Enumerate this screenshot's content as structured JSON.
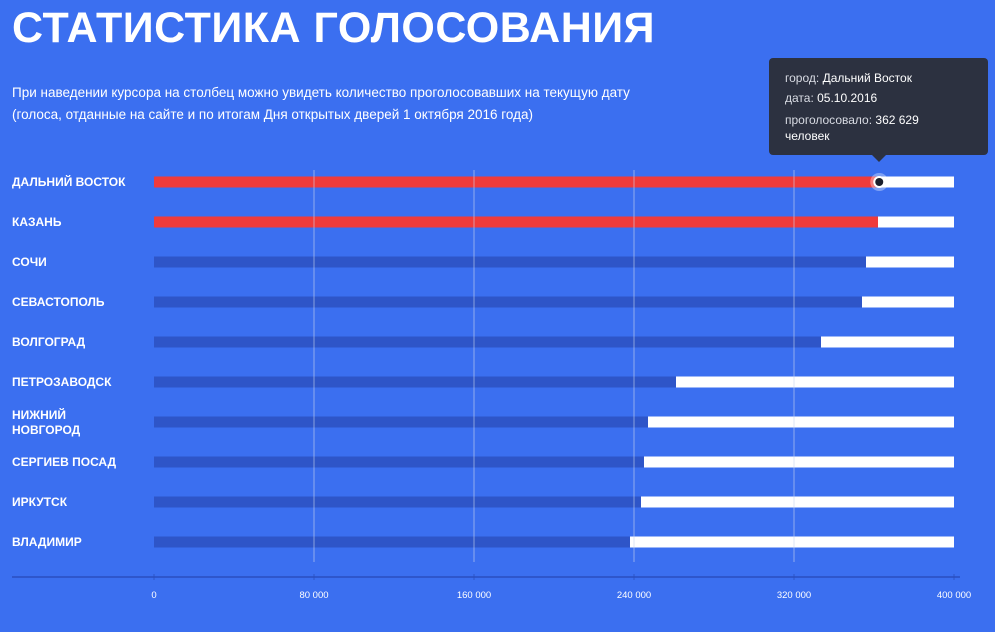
{
  "title": "СТАТИСТИКА ГОЛОСОВАНИЯ",
  "subtitle": {
    "line1": "При наведении курсора на столбец можно увидеть количество проголосовавших на текущую дату",
    "line2": "(голоса, отданные на сайте и по итогам Дня открытых дверей 1 октября 2016 года)"
  },
  "tooltip": {
    "city_key": "город:",
    "city_value": "Дальний Восток",
    "date_key": "дата:",
    "date_value": "05.10.2016",
    "votes_key": "проголосовало:",
    "votes_value": "362 629",
    "votes_unit": "человек"
  },
  "colors": {
    "background": "#3b6ff0",
    "bar_default": "#2e55c8",
    "bar_highlight": "#ef3b3b",
    "bar_remainder": "#ffffff",
    "tooltip_bg": "#2c3140"
  },
  "chart_data": {
    "type": "bar",
    "orientation": "horizontal",
    "categories": [
      "ДАЛЬНИЙ ВОСТОК",
      "КАЗАНЬ",
      "СОЧИ",
      "СЕВАСТОПОЛЬ",
      "ВОЛГОГРАД",
      "ПЕТРОЗАВОДСК",
      "НИЖНИЙ НОВГОРОД",
      "СЕРГИЕВ ПОСАД",
      "ИРКУТСК",
      "ВЛАДИМИР"
    ],
    "values": [
      362629,
      362000,
      356000,
      354000,
      333500,
      261000,
      247000,
      245000,
      243500,
      238000
    ],
    "highlighted": [
      "ДАЛЬНИЙ ВОСТОК",
      "КАЗАНЬ"
    ],
    "hovered": "ДАЛЬНИЙ ВОСТОК",
    "xlim": [
      0,
      400000
    ],
    "xticks": [
      0,
      80000,
      160000,
      240000,
      320000,
      400000
    ],
    "xtick_labels": [
      "0",
      "80 000",
      "160 000",
      "240 000",
      "320 000",
      "400 000"
    ],
    "grid": true
  }
}
